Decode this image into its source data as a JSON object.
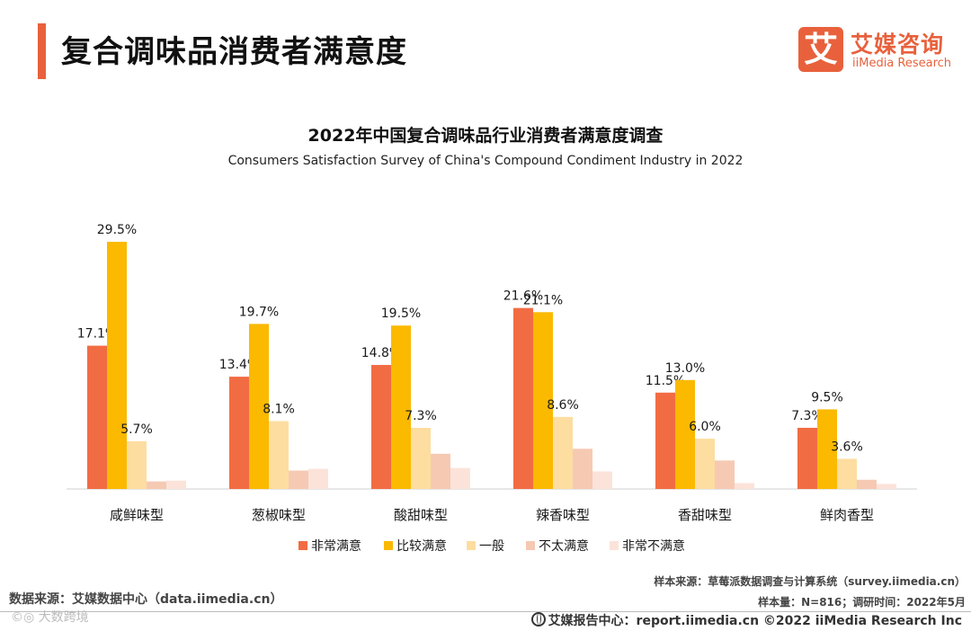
{
  "header": {
    "title": "复合调味品消费者满意度",
    "accent_color": "#e8613c"
  },
  "logo": {
    "mark": "艾",
    "name_cn": "艾媒咨询",
    "name_en": "iiMedia Research",
    "color": "#e8613c"
  },
  "chart_data": {
    "type": "bar",
    "title": "2022年中国复合调味品行业消费者满意度调查",
    "subtitle": "Consumers Satisfaction Survey of China's Compound Condiment Industry in 2022",
    "categories": [
      "咸鲜味型",
      "葱椒味型",
      "酸甜味型",
      "辣香味型",
      "香甜味型",
      "鲜肉香型"
    ],
    "unit": "%",
    "series": [
      {
        "name": "非常满意",
        "color": "#f26c43",
        "values": [
          17.1,
          13.4,
          14.8,
          21.6,
          11.5,
          7.3
        ],
        "labeled": true
      },
      {
        "name": "比较满意",
        "color": "#fbb900",
        "values": [
          29.5,
          19.7,
          19.5,
          21.1,
          13.0,
          9.5
        ],
        "labeled": true
      },
      {
        "name": "一般",
        "color": "#fddda0",
        "values": [
          5.7,
          8.1,
          7.3,
          8.6,
          6.0,
          3.6
        ],
        "labeled": true
      },
      {
        "name": "不太满意",
        "color": "#f6c9b3",
        "values": [
          0.9,
          2.2,
          4.2,
          4.8,
          3.4,
          1.1
        ],
        "labeled": false
      },
      {
        "name": "非常不满意",
        "color": "#fbe3d9",
        "values": [
          1.0,
          2.4,
          2.5,
          2.1,
          0.7,
          0.6
        ],
        "labeled": false
      }
    ],
    "ylim": [
      0,
      32
    ],
    "legend_position": "bottom",
    "grid": false
  },
  "source": {
    "sample_source": "样本来源：草莓派数据调查与计算系统（survey.iimedia.cn）",
    "sample_info": "样本量：N=816；调研时间：2022年5月",
    "data_source": "数据来源：艾媒数据中心（data.iimedia.cn）"
  },
  "footer": {
    "watermark": "©◎ 大数跨境",
    "report_center": "艾媒报告中心：report.iimedia.cn   ©2022  iiMedia Research  Inc"
  }
}
